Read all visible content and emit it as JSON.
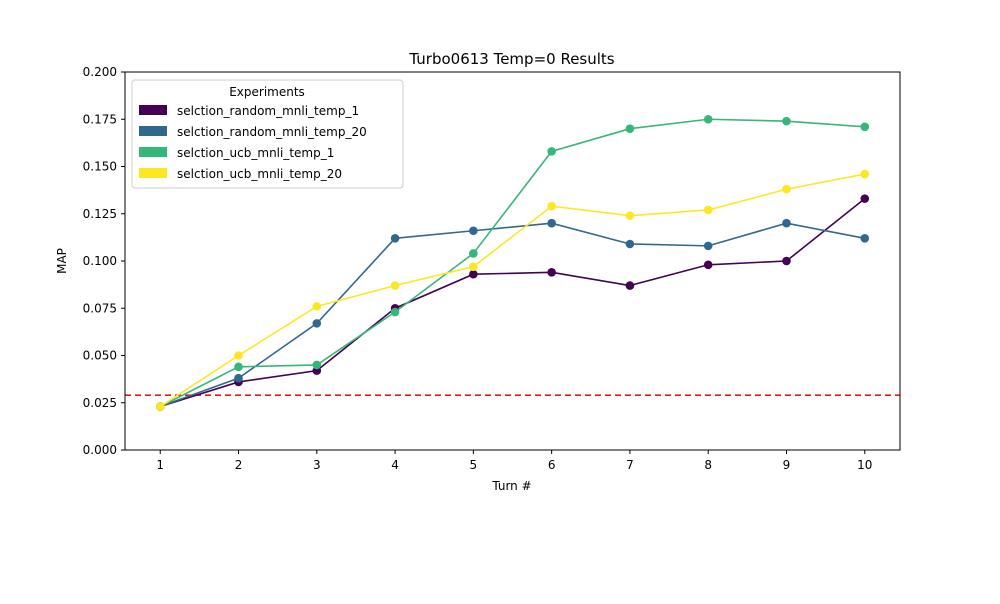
{
  "chart_data": {
    "type": "line",
    "title": "Turbo0613 Temp=0 Results",
    "xlabel": "Turn #",
    "ylabel": "MAP",
    "x": [
      1,
      2,
      3,
      4,
      5,
      6,
      7,
      8,
      9,
      10
    ],
    "xlim": [
      0.55,
      10.45
    ],
    "ylim": [
      0.0,
      0.2
    ],
    "yticks": [
      "0.000",
      "0.025",
      "0.050",
      "0.075",
      "0.100",
      "0.125",
      "0.150",
      "0.175",
      "0.200"
    ],
    "grid": false,
    "legend": {
      "title": "Experiments",
      "placement": "top-left"
    },
    "series": [
      {
        "name": "selction_random_mnli_temp_1",
        "color": "#440154",
        "values": [
          0.023,
          0.036,
          0.042,
          0.075,
          0.093,
          0.094,
          0.087,
          0.098,
          0.1,
          0.133
        ]
      },
      {
        "name": "selction_random_mnli_temp_20",
        "color": "#31688e",
        "values": [
          0.023,
          0.038,
          0.067,
          0.112,
          0.116,
          0.12,
          0.109,
          0.108,
          0.12,
          0.112
        ]
      },
      {
        "name": "selction_ucb_mnli_temp_1",
        "color": "#35b779",
        "values": [
          0.023,
          0.044,
          0.045,
          0.073,
          0.104,
          0.158,
          0.17,
          0.175,
          0.174,
          0.171
        ]
      },
      {
        "name": "selction_ucb_mnli_temp_20",
        "color": "#fde725",
        "values": [
          0.023,
          0.05,
          0.076,
          0.087,
          0.097,
          0.129,
          0.124,
          0.127,
          0.138,
          0.146
        ]
      }
    ],
    "reference_line": {
      "y": 0.029,
      "color": "#e41a1c",
      "style": "dashed"
    }
  }
}
